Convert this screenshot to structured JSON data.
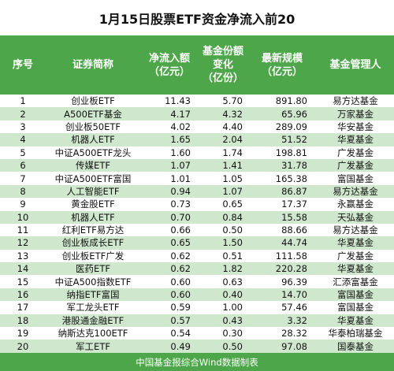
{
  "title": "1月15日股票ETF资金净流入前20",
  "header": {
    "rank": "序号",
    "name": "证券简称",
    "net_inflow": "净流入额\n（亿元）",
    "share_change": "基金份额\n变化\n（亿份）",
    "latest_size": "最新规模\n（亿元）",
    "manager": "基金管理人"
  },
  "rows": [
    {
      "rank": "1",
      "name": "创业板ETF",
      "net_inflow": "11.43",
      "share_change": "5.70",
      "latest_size": "891.80",
      "manager": "易方达基金"
    },
    {
      "rank": "2",
      "name": "A500ETF基金",
      "net_inflow": "4.17",
      "share_change": "4.32",
      "latest_size": "65.96",
      "manager": "万家基金"
    },
    {
      "rank": "3",
      "name": "创业板50ETF",
      "net_inflow": "4.02",
      "share_change": "4.40",
      "latest_size": "289.09",
      "manager": "华安基金"
    },
    {
      "rank": "4",
      "name": "机器人ETF",
      "net_inflow": "1.65",
      "share_change": "2.04",
      "latest_size": "51.52",
      "manager": "华夏基金"
    },
    {
      "rank": "5",
      "name": "中证A500ETF龙头",
      "net_inflow": "1.60",
      "share_change": "1.74",
      "latest_size": "198.81",
      "manager": "广发基金"
    },
    {
      "rank": "6",
      "name": "传媒ETF",
      "net_inflow": "1.07",
      "share_change": "1.41",
      "latest_size": "31.78",
      "manager": "广发基金"
    },
    {
      "rank": "7",
      "name": "中证A500ETF富国",
      "net_inflow": "1.01",
      "share_change": "1.05",
      "latest_size": "165.38",
      "manager": "富国基金"
    },
    {
      "rank": "8",
      "name": "人工智能ETF",
      "net_inflow": "0.94",
      "share_change": "1.07",
      "latest_size": "86.87",
      "manager": "易方达基金"
    },
    {
      "rank": "9",
      "name": "黄金股ETF",
      "net_inflow": "0.73",
      "share_change": "0.65",
      "latest_size": "17.37",
      "manager": "永赢基金"
    },
    {
      "rank": "10",
      "name": "机器人ETF",
      "net_inflow": "0.70",
      "share_change": "0.84",
      "latest_size": "15.58",
      "manager": "天弘基金"
    },
    {
      "rank": "11",
      "name": "红利ETF易方达",
      "net_inflow": "0.66",
      "share_change": "0.50",
      "latest_size": "88.66",
      "manager": "易方达基金"
    },
    {
      "rank": "12",
      "name": "创业板成长ETF",
      "net_inflow": "0.65",
      "share_change": "1.50",
      "latest_size": "44.74",
      "manager": "华夏基金"
    },
    {
      "rank": "13",
      "name": "创业板ETF广发",
      "net_inflow": "0.62",
      "share_change": "0.51",
      "latest_size": "111.58",
      "manager": "广发基金"
    },
    {
      "rank": "14",
      "name": "医药ETF",
      "net_inflow": "0.62",
      "share_change": "1.82",
      "latest_size": "220.28",
      "manager": "华夏基金"
    },
    {
      "rank": "15",
      "name": "中证A500指数ETF",
      "net_inflow": "0.60",
      "share_change": "0.63",
      "latest_size": "96.39",
      "manager": "汇添富基金"
    },
    {
      "rank": "16",
      "name": "纳指ETF富国",
      "net_inflow": "0.60",
      "share_change": "0.40",
      "latest_size": "14.70",
      "manager": "富国基金"
    },
    {
      "rank": "17",
      "name": "军工龙头ETF",
      "net_inflow": "0.59",
      "share_change": "1.00",
      "latest_size": "57.46",
      "manager": "富国基金"
    },
    {
      "rank": "18",
      "name": "港股通金融ETF",
      "net_inflow": "0.57",
      "share_change": "0.43",
      "latest_size": "3.32",
      "manager": "华夏基金"
    },
    {
      "rank": "19",
      "name": "纳斯达克100ETF",
      "net_inflow": "0.54",
      "share_change": "0.30",
      "latest_size": "28.32",
      "manager": "华泰柏瑞基金"
    },
    {
      "rank": "20",
      "name": "军工ETF",
      "net_inflow": "0.49",
      "share_change": "0.50",
      "latest_size": "97.08",
      "manager": "国泰基金"
    }
  ],
  "footer": "中国基金报综合Wind数据制表"
}
